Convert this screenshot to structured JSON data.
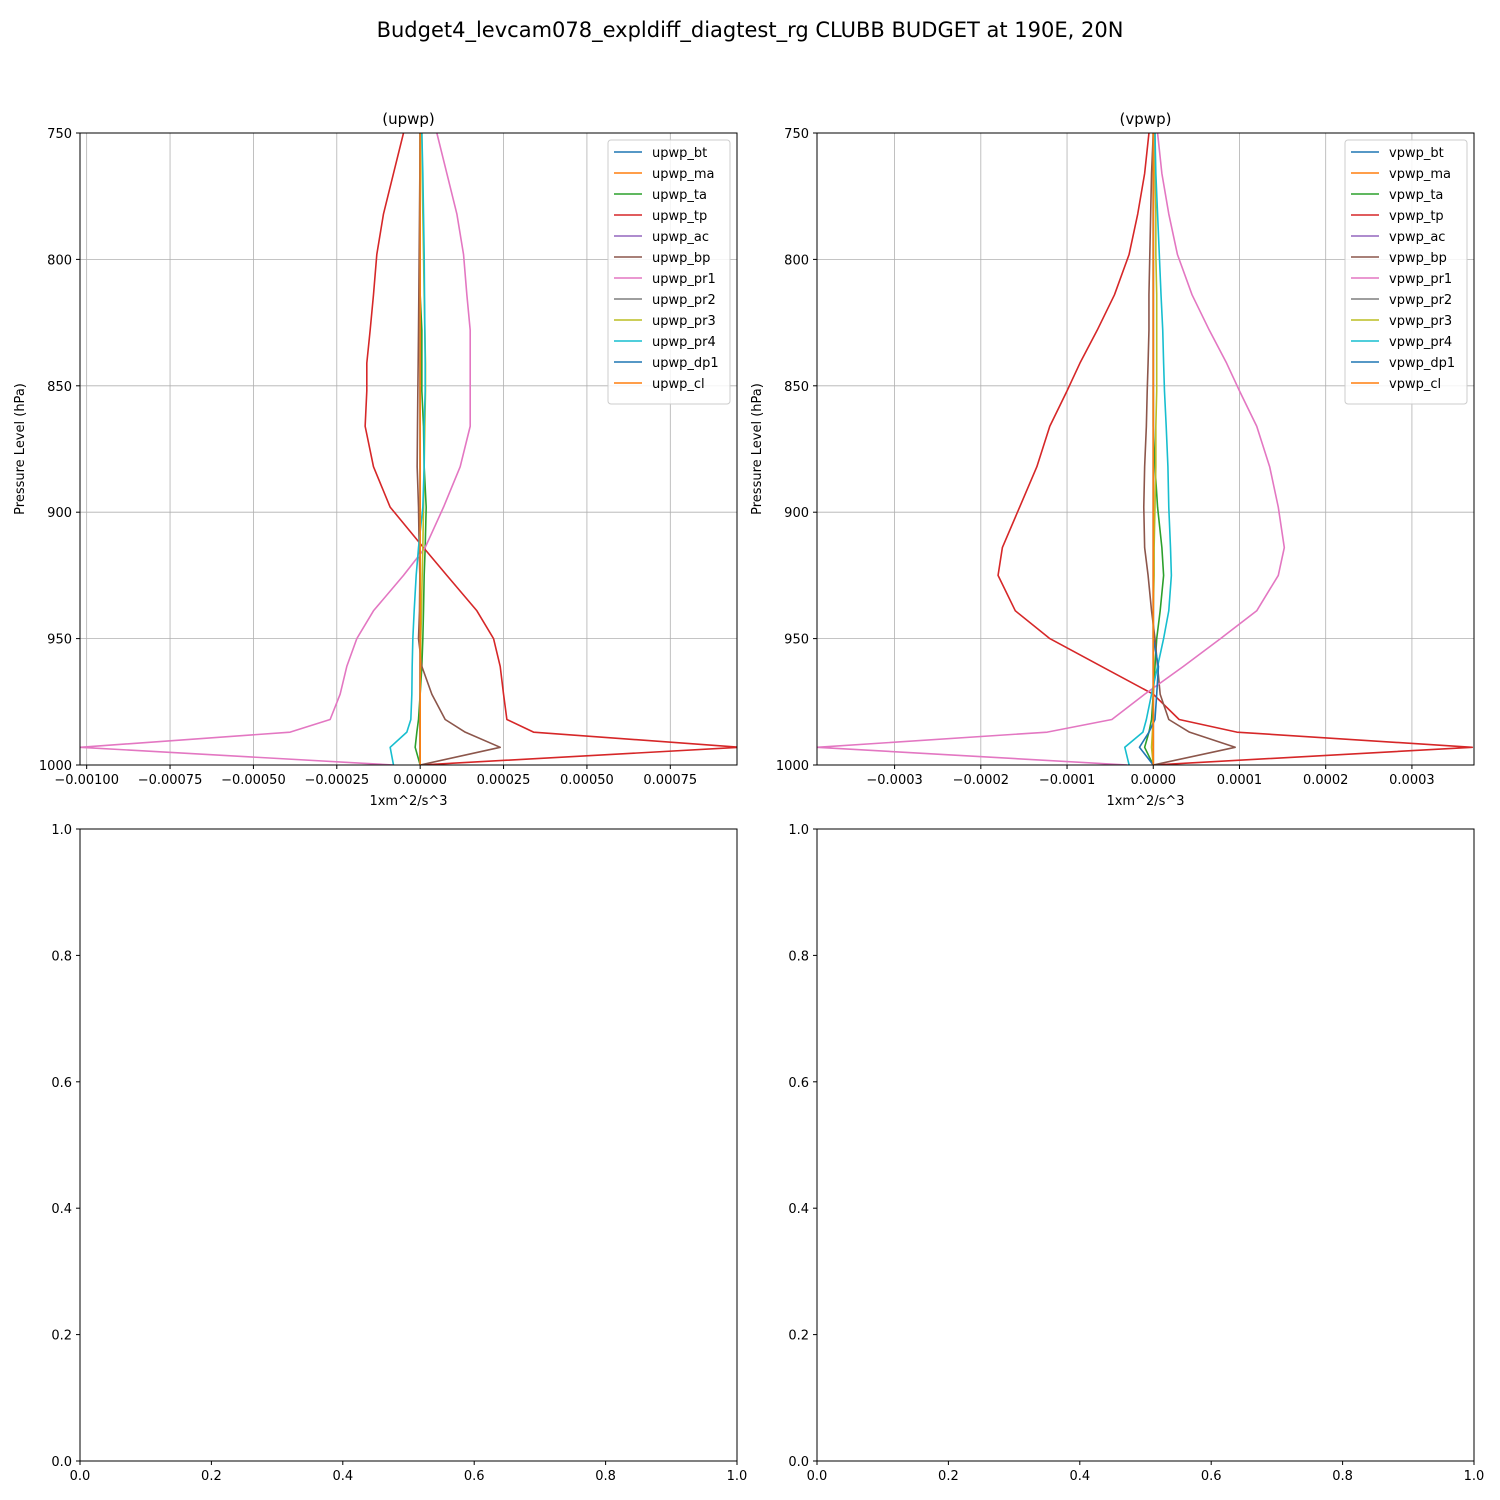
{
  "chart_data": {
    "title": "Budget4_levcam078_expldiff_diagtest_rg CLUBB BUDGET at 190E, 20N",
    "panels": [
      {
        "type": "line",
        "title": "(upwp)",
        "xlabel": "1xm^2/s^3",
        "ylabel": "Pressure Level (hPa)",
        "xlim": [
          -0.00102,
          0.00095
        ],
        "ylim": [
          1000,
          750
        ],
        "xticks": [
          -0.001,
          -0.00075,
          -0.0005,
          -0.00025,
          0.0,
          0.00025,
          0.0005,
          0.00075
        ],
        "xtick_labels": [
          "−0.00100",
          "−0.00075",
          "−0.00050",
          "−0.00025",
          "0.00000",
          "0.00025",
          "0.00050",
          "0.00075"
        ],
        "yticks": [
          750,
          800,
          850,
          900,
          950,
          1000
        ],
        "ytick_labels": [
          "750",
          "800",
          "850",
          "900",
          "950",
          "1000"
        ],
        "grid": true,
        "legend": "upper right",
        "p": [
          750,
          766,
          782,
          798,
          814,
          828,
          841,
          852,
          866,
          882,
          898,
          914,
          925,
          939,
          950,
          961,
          972,
          982,
          987,
          993,
          1000
        ],
        "series": [
          {
            "name": "upwp_bt",
            "color": "#1f77b4",
            "values": [
              0,
              0,
              0,
              0,
              0,
              0,
              0,
              0,
              0,
              0,
              0,
              0,
              0,
              0,
              0,
              0,
              0,
              0,
              0,
              0,
              0
            ]
          },
          {
            "name": "upwp_ma",
            "color": "#ff7f0e",
            "values": [
              0,
              0,
              0,
              0,
              0,
              0,
              0,
              0,
              0,
              0,
              0,
              0,
              0,
              0,
              0,
              0,
              0,
              0,
              0,
              0,
              0
            ]
          },
          {
            "name": "upwp_ta",
            "color": "#2ca02c",
            "values": [
              0,
              0,
              0,
              0,
              0,
              5e-06,
              5e-06,
              5e-06,
              1e-05,
              1.2e-05,
              1.8e-05,
              1.5e-05,
              1.2e-05,
              1e-05,
              8e-06,
              5e-06,
              0,
              -5e-06,
              -1e-05,
              -1.5e-05,
              0
            ]
          },
          {
            "name": "upwp_tp",
            "color": "#d62728",
            "values": [
              -5e-05,
              -8e-05,
              -0.00011,
              -0.00013,
              -0.00014,
              -0.00015,
              -0.00016,
              -0.00016,
              -0.000165,
              -0.00014,
              -9e-05,
              1e-05,
              8e-05,
              0.00017,
              0.00022,
              0.00024,
              0.00025,
              0.00026,
              0.00034,
              0.00096,
              0
            ]
          },
          {
            "name": "upwp_ac",
            "color": "#9467bd",
            "values": [
              0,
              0,
              0,
              0,
              0,
              0,
              0,
              0,
              0,
              0,
              0,
              0,
              0,
              0,
              0,
              0,
              0,
              0,
              0,
              0,
              0
            ]
          },
          {
            "name": "upwp_bp",
            "color": "#8c564b",
            "values": [
              0,
              -1e-06,
              -2e-06,
              -3e-06,
              -4e-06,
              -5e-06,
              -6e-06,
              -7e-06,
              -8e-06,
              -9e-06,
              -5e-06,
              -3e-06,
              -1e-06,
              -2e-06,
              -5e-06,
              5e-06,
              3.5e-05,
              7.5e-05,
              0.000135,
              0.00024,
              0
            ]
          },
          {
            "name": "upwp_pr1",
            "color": "#e377c2",
            "values": [
              5e-05,
              8e-05,
              0.00011,
              0.00013,
              0.00014,
              0.00015,
              0.00015,
              0.00015,
              0.00015,
              0.00012,
              7e-05,
              1.5e-05,
              -5e-05,
              -0.00014,
              -0.00019,
              -0.00022,
              -0.00024,
              -0.00027,
              -0.00039,
              -0.00102,
              -8e-05
            ]
          },
          {
            "name": "upwp_pr2",
            "color": "#7f7f7f",
            "values": [
              0,
              0,
              0,
              0,
              0,
              0,
              0,
              0,
              0,
              0,
              0,
              0,
              0,
              0,
              0,
              0,
              0,
              0,
              0,
              0,
              0
            ]
          },
          {
            "name": "upwp_pr3",
            "color": "#bcbd22",
            "values": [
              5e-06,
              6e-06,
              8e-06,
              1e-05,
              1.2e-05,
              1.4e-05,
              1.6e-05,
              1.6e-05,
              1.4e-05,
              1.2e-05,
              1e-05,
              8e-06,
              6e-06,
              4e-06,
              2e-06,
              1e-06,
              0,
              0,
              0,
              0,
              0
            ]
          },
          {
            "name": "upwp_pr4",
            "color": "#17becf",
            "values": [
              5e-06,
              8e-06,
              1e-05,
              1.2e-05,
              1.3e-05,
              1.4e-05,
              1.5e-05,
              1.5e-05,
              1.2e-05,
              1.2e-05,
              8e-06,
              -5e-06,
              -1.2e-05,
              -1.8e-05,
              -2.2e-05,
              -2.4e-05,
              -2.5e-05,
              -2.8e-05,
              -4e-05,
              -9e-05,
              -8e-05
            ]
          },
          {
            "name": "upwp_dp1",
            "color": "#1f77b4",
            "values": [
              0,
              0,
              0,
              0,
              0,
              0,
              0,
              0,
              0,
              0,
              0,
              0,
              0,
              0,
              0,
              0,
              0,
              0,
              0,
              0,
              0
            ]
          },
          {
            "name": "upwp_cl",
            "color": "#ff7f0e",
            "values": [
              0,
              0,
              0,
              0,
              0,
              0,
              0,
              0,
              0,
              0,
              0,
              0,
              0,
              0,
              0,
              0,
              0,
              0,
              0,
              0,
              0
            ]
          }
        ]
      },
      {
        "type": "line",
        "title": "(vpwp)",
        "xlabel": "1xm^2/s^3",
        "ylabel": "Pressure Level (hPa)",
        "xlim": [
          -0.00039,
          0.000372
        ],
        "ylim": [
          1000,
          750
        ],
        "xticks": [
          -0.0003,
          -0.0002,
          -0.0001,
          0.0,
          0.0001,
          0.0002,
          0.0003
        ],
        "xtick_labels": [
          "−0.0003",
          "−0.0002",
          "−0.0001",
          "0.0000",
          "0.0001",
          "0.0002",
          "0.0003"
        ],
        "yticks": [
          750,
          800,
          850,
          900,
          950,
          1000
        ],
        "ytick_labels": [
          "750",
          "800",
          "850",
          "900",
          "950",
          "1000"
        ],
        "grid": true,
        "legend": "upper right",
        "p": [
          750,
          766,
          782,
          798,
          814,
          828,
          841,
          852,
          866,
          882,
          898,
          914,
          925,
          939,
          950,
          961,
          972,
          982,
          987,
          993,
          1000
        ],
        "series": [
          {
            "name": "vpwp_bt",
            "color": "#1f77b4",
            "values": [
              0,
              0,
              0,
              0,
              0,
              0,
              0,
              0,
              0,
              0,
              0,
              0,
              0,
              0,
              0,
              0,
              0,
              0,
              0,
              0,
              0
            ]
          },
          {
            "name": "vpwp_ma",
            "color": "#ff7f0e",
            "values": [
              0,
              0,
              0,
              0,
              0,
              0,
              0,
              0,
              0,
              0,
              0,
              0,
              0,
              0,
              0,
              0,
              0,
              0,
              0,
              0,
              0
            ]
          },
          {
            "name": "vpwp_ta",
            "color": "#2ca02c",
            "values": [
              0,
              0,
              0,
              0,
              0,
              0,
              0,
              0,
              0,
              2e-06,
              5e-06,
              1e-05,
              1.2e-05,
              8e-06,
              4e-06,
              2e-06,
              0,
              -2e-06,
              -5e-06,
              -1e-05,
              0
            ]
          },
          {
            "name": "vpwp_tp",
            "color": "#d62728",
            "values": [
              -5e-06,
              -1e-05,
              -1.8e-05,
              -2.8e-05,
              -4.5e-05,
              -6.5e-05,
              -8.5e-05,
              -0.0001,
              -0.00012,
              -0.000135,
              -0.000155,
              -0.000175,
              -0.00018,
              -0.00016,
              -0.00012,
              -6e-05,
              0,
              3e-05,
              9.7e-05,
              0.00037,
              0
            ]
          },
          {
            "name": "vpwp_ac",
            "color": "#9467bd",
            "values": [
              0,
              0,
              0,
              0,
              0,
              0,
              0,
              0,
              0,
              0,
              0,
              0,
              0,
              0,
              0,
              0,
              0,
              0,
              0,
              0,
              0
            ]
          },
          {
            "name": "vpwp_bp",
            "color": "#8c564b",
            "values": [
              0,
              -2e-06,
              -3e-06,
              -4e-06,
              -5e-06,
              -5e-06,
              -6e-06,
              -7e-06,
              -8e-06,
              -1e-05,
              -1.1e-05,
              -1e-05,
              -6e-06,
              -2e-06,
              2e-06,
              5e-06,
              8e-06,
              1.8e-05,
              4.2e-05,
              9.5e-05,
              0
            ]
          },
          {
            "name": "vpwp_pr1",
            "color": "#e377c2",
            "values": [
              5e-06,
              1e-05,
              1.8e-05,
              2.8e-05,
              4.5e-05,
              6.5e-05,
              8.5e-05,
              0.0001,
              0.00012,
              0.000135,
              0.000145,
              0.000152,
              0.000145,
              0.00012,
              7.8e-05,
              3.5e-05,
              -1e-05,
              -4.8e-05,
              -0.000123,
              -0.00039,
              -3e-05
            ]
          },
          {
            "name": "vpwp_pr2",
            "color": "#7f7f7f",
            "values": [
              0,
              0,
              0,
              0,
              0,
              0,
              0,
              0,
              0,
              0,
              0,
              0,
              0,
              0,
              0,
              0,
              0,
              0,
              0,
              0,
              0
            ]
          },
          {
            "name": "vpwp_pr3",
            "color": "#bcbd22",
            "values": [
              2e-06,
              2e-06,
              3e-06,
              3e-06,
              4e-06,
              4e-06,
              4e-06,
              4e-06,
              3e-06,
              3e-06,
              2e-06,
              1e-06,
              1e-06,
              0,
              0,
              0,
              0,
              0,
              -1e-06,
              -2e-06,
              0
            ]
          },
          {
            "name": "vpwp_pr4",
            "color": "#17becf",
            "values": [
              2e-06,
              3e-06,
              5e-06,
              7e-06,
              9e-06,
              1.1e-05,
              1.2e-05,
              1.3e-05,
              1.5e-05,
              1.7e-05,
              1.8e-05,
              2e-05,
              2.1e-05,
              1.8e-05,
              1.2e-05,
              5e-06,
              -2e-06,
              -8e-06,
              -1.2e-05,
              -3.3e-05,
              -2.8e-05
            ]
          },
          {
            "name": "vpwp_dp1",
            "color": "#1f77b4",
            "values": [
              0,
              0,
              0,
              0,
              0,
              0,
              0,
              0,
              0,
              0,
              0,
              0,
              0,
              0,
              0,
              6e-06,
              4e-06,
              2e-06,
              -5e-06,
              -1.6e-05,
              0
            ]
          },
          {
            "name": "vpwp_cl",
            "color": "#ff7f0e",
            "values": [
              0,
              0,
              0,
              0,
              0,
              0,
              0,
              0,
              0,
              0,
              0,
              0,
              0,
              0,
              0,
              0,
              0,
              0,
              0,
              0,
              0
            ]
          }
        ]
      },
      {
        "type": "line",
        "title": "",
        "xlim": [
          0,
          1
        ],
        "ylim": [
          0,
          1
        ],
        "xticks": [
          0,
          0.2,
          0.4,
          0.6,
          0.8,
          1.0
        ],
        "xtick_labels": [
          "0.0",
          "0.2",
          "0.4",
          "0.6",
          "0.8",
          "1.0"
        ],
        "yticks": [
          0,
          0.2,
          0.4,
          0.6,
          0.8,
          1.0
        ],
        "ytick_labels": [
          "0.0",
          "0.2",
          "0.4",
          "0.6",
          "0.8",
          "1.0"
        ],
        "grid": false,
        "series": []
      },
      {
        "type": "line",
        "title": "",
        "xlim": [
          0,
          1
        ],
        "ylim": [
          0,
          1
        ],
        "xticks": [
          0,
          0.2,
          0.4,
          0.6,
          0.8,
          1.0
        ],
        "xtick_labels": [
          "0.0",
          "0.2",
          "0.4",
          "0.6",
          "0.8",
          "1.0"
        ],
        "yticks": [
          0,
          0.2,
          0.4,
          0.6,
          0.8,
          1.0
        ],
        "ytick_labels": [
          "0.0",
          "0.2",
          "0.4",
          "0.6",
          "0.8",
          "1.0"
        ],
        "grid": false,
        "series": []
      }
    ]
  }
}
